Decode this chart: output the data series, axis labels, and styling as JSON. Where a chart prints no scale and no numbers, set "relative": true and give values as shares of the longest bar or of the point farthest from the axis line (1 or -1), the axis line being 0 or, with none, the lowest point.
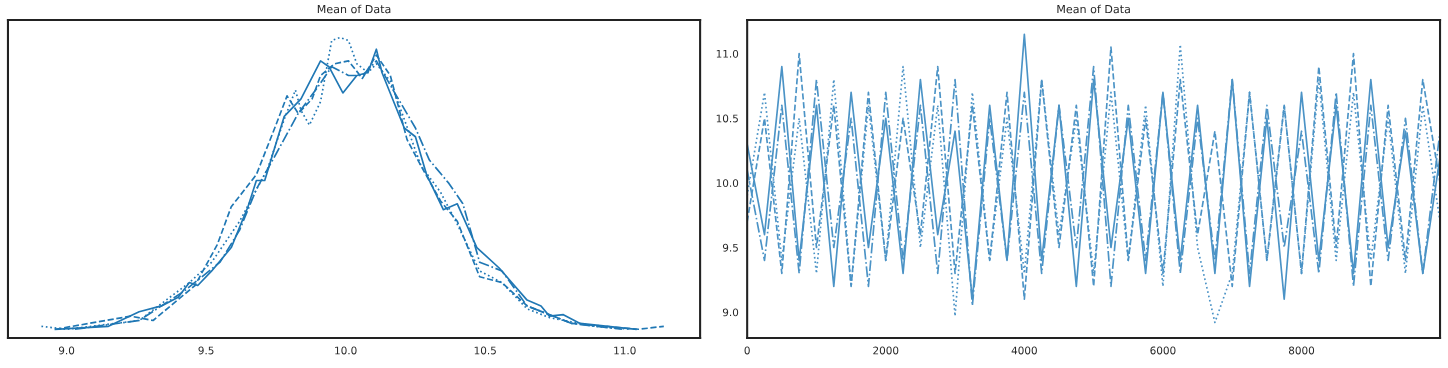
{
  "chart_data": [
    {
      "type": "line",
      "title": "Mean of Data",
      "relative": true,
      "xlim": [
        8.79,
        11.27
      ],
      "xticks": [
        {
          "value": 9.0,
          "label": "9.0"
        },
        {
          "value": 9.5,
          "label": "9.5"
        },
        {
          "value": 10.0,
          "label": "10.0"
        },
        {
          "value": 10.5,
          "label": "10.5"
        },
        {
          "value": 11.0,
          "label": "11.0"
        }
      ],
      "tick_labels": "x",
      "grid": false,
      "legend": false,
      "series": [
        {
          "color": "#1f77b4",
          "line_style": "solid",
          "x": [
            8.96,
            9.15,
            9.26,
            9.34,
            9.4,
            9.44,
            9.47,
            9.52,
            9.59,
            9.65,
            9.68,
            9.71,
            9.78,
            9.84,
            9.91,
            9.94,
            9.99,
            10.04,
            10.08,
            10.11,
            10.13,
            10.21,
            10.25,
            10.29,
            10.35,
            10.4,
            10.47,
            10.55,
            10.65,
            10.7,
            10.73,
            10.78,
            10.84,
            10.99,
            11.04
          ],
          "values": [
            0,
            0.01,
            0.06,
            0.08,
            0.11,
            0.16,
            0.15,
            0.2,
            0.28,
            0.42,
            0.51,
            0.51,
            0.73,
            0.79,
            0.92,
            0.9,
            0.81,
            0.87,
            0.88,
            0.96,
            0.88,
            0.69,
            0.66,
            0.53,
            0.41,
            0.43,
            0.28,
            0.21,
            0.1,
            0.08,
            0.045,
            0.05,
            0.02,
            0.005,
            0
          ]
        },
        {
          "color": "#1f77b4",
          "line_style": "dashed",
          "x": [
            8.96,
            9.23,
            9.31,
            9.46,
            9.54,
            9.59,
            9.68,
            9.75,
            9.79,
            9.83,
            9.88,
            9.91,
            9.96,
            10.01,
            10.06,
            10.11,
            10.16,
            10.22,
            10.27,
            10.34,
            10.4,
            10.48,
            10.56,
            10.65,
            10.81,
            11.05,
            11.14
          ],
          "values": [
            0,
            0.045,
            0.03,
            0.15,
            0.29,
            0.42,
            0.53,
            0.7,
            0.8,
            0.74,
            0.79,
            0.87,
            0.91,
            0.92,
            0.86,
            0.94,
            0.87,
            0.65,
            0.56,
            0.44,
            0.37,
            0.18,
            0.16,
            0.08,
            0.02,
            0,
            0.01
          ]
        },
        {
          "color": "#1f77b4",
          "line_style": "dashdot",
          "x": [
            9.03,
            9.26,
            9.42,
            9.55,
            9.62,
            9.68,
            9.75,
            9.83,
            9.9,
            9.95,
            10.01,
            10.06,
            10.11,
            10.17,
            10.25,
            10.3,
            10.37,
            10.42,
            10.48,
            10.56,
            10.65,
            10.81,
            10.99
          ],
          "values": [
            0,
            0.03,
            0.13,
            0.23,
            0.34,
            0.48,
            0.6,
            0.74,
            0.83,
            0.9,
            0.87,
            0.87,
            0.92,
            0.82,
            0.69,
            0.58,
            0.5,
            0.43,
            0.23,
            0.2,
            0.08,
            0.02,
            0
          ]
        },
        {
          "color": "#1f77b4",
          "line_style": "dotted",
          "x": [
            8.91,
            9.0,
            9.26,
            9.44,
            9.52,
            9.62,
            9.72,
            9.78,
            9.82,
            9.84,
            9.87,
            9.91,
            9.95,
            9.98,
            10.01,
            10.04,
            10.08,
            10.11,
            10.16,
            10.21,
            10.27,
            10.34,
            10.4,
            10.48,
            10.56,
            10.65,
            10.73,
            10.89,
            11.02
          ],
          "values": [
            0.01,
            0,
            0.03,
            0.16,
            0.23,
            0.37,
            0.55,
            0.72,
            0.82,
            0.75,
            0.7,
            0.78,
            0.99,
            1,
            0.99,
            0.91,
            0.88,
            0.91,
            0.85,
            0.72,
            0.56,
            0.47,
            0.36,
            0.2,
            0.16,
            0.07,
            0.04,
            0.01,
            0
          ]
        }
      ]
    },
    {
      "type": "line",
      "title": "Mean of Data",
      "xlim": [
        0,
        9999
      ],
      "ylim": [
        8.8,
        11.26
      ],
      "xticks": [
        0,
        2000,
        4000,
        6000,
        8000
      ],
      "yticks": [
        {
          "value": 9.0,
          "label": "9.0"
        },
        {
          "value": 9.5,
          "label": "9.5"
        },
        {
          "value": 10.0,
          "label": "10.0"
        },
        {
          "value": 10.5,
          "label": "10.5"
        },
        {
          "value": 11.0,
          "label": "11.0"
        }
      ],
      "grid": false,
      "legend": false,
      "x": [
        0,
        250,
        500,
        750,
        1000,
        1250,
        1500,
        1750,
        2000,
        2250,
        2500,
        2750,
        3000,
        3250,
        3500,
        3750,
        4000,
        4250,
        4500,
        4750,
        5000,
        5250,
        5500,
        5750,
        6000,
        6250,
        6500,
        6750,
        7000,
        7250,
        7500,
        7750,
        8000,
        8250,
        8500,
        8750,
        9000,
        9250,
        9500,
        9750,
        9999
      ],
      "series": [
        {
          "color": "#4b93c6",
          "line_style": "solid",
          "values": [
            10.3,
            9.6,
            10.9,
            9.4,
            10.6,
            9.2,
            10.7,
            9.5,
            10.5,
            9.3,
            10.8,
            9.6,
            10.4,
            9.1,
            10.6,
            9.4,
            11.15,
            9.4,
            10.6,
            9.2,
            10.8,
            9.5,
            10.5,
            9.3,
            10.7,
            9.4,
            10.6,
            9.3,
            10.8,
            9.2,
            10.5,
            9.1,
            10.7,
            9.4,
            10.6,
            9.3,
            10.8,
            9.5,
            10.4,
            9.3,
            10.2
          ]
        },
        {
          "color": "#4b93c6",
          "line_style": "dashed",
          "values": [
            9.7,
            10.5,
            9.3,
            11.0,
            9.5,
            10.6,
            9.2,
            10.7,
            9.4,
            10.5,
            9.6,
            10.9,
            9.3,
            10.6,
            9.4,
            10.7,
            9.1,
            10.8,
            9.5,
            10.6,
            9.2,
            11.05,
            9.4,
            10.5,
            9.3,
            10.8,
            9.6,
            10.4,
            9.2,
            10.7,
            9.4,
            10.6,
            9.3,
            10.9,
            9.5,
            11.0,
            9.2,
            10.6,
            9.4,
            10.8,
            10.0
          ]
        },
        {
          "color": "#4b93c6",
          "line_style": "dashdot",
          "values": [
            10.1,
            9.4,
            10.6,
            9.3,
            10.8,
            9.5,
            10.5,
            9.2,
            10.7,
            9.4,
            10.6,
            9.3,
            10.8,
            9.05,
            10.5,
            9.4,
            10.7,
            9.3,
            10.6,
            9.5,
            10.9,
            9.2,
            10.6,
            9.4,
            10.7,
            9.3,
            10.5,
            9.4,
            10.8,
            9.3,
            10.6,
            9.5,
            10.4,
            9.3,
            10.7,
            9.2,
            10.6,
            9.4,
            10.5,
            9.3,
            10.4
          ]
        },
        {
          "color": "#4b93c6",
          "line_style": "dotted",
          "values": [
            9.9,
            10.7,
            9.4,
            10.5,
            9.3,
            10.8,
            9.2,
            10.6,
            9.4,
            10.9,
            9.5,
            10.6,
            8.97,
            10.7,
            9.4,
            10.5,
            9.3,
            10.8,
            9.6,
            10.5,
            9.3,
            10.7,
            9.4,
            10.6,
            9.2,
            11.07,
            9.5,
            8.92,
            9.3,
            10.7,
            9.4,
            10.6,
            9.3,
            10.8,
            9.4,
            10.7,
            9.4,
            10.5,
            9.3,
            10.6,
            9.7
          ]
        }
      ]
    }
  ]
}
